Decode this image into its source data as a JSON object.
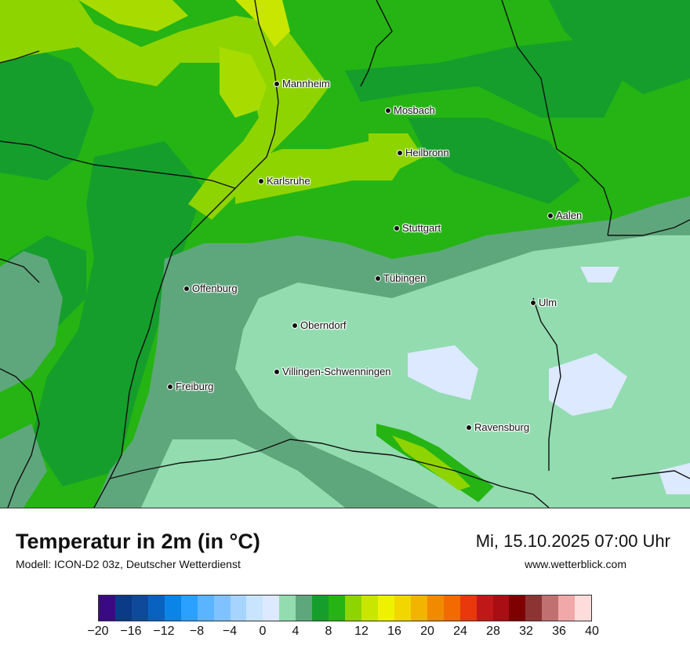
{
  "map": {
    "cities": [
      {
        "name": "Mannheim"
      },
      {
        "name": "Mosbach"
      },
      {
        "name": "Heilbronn"
      },
      {
        "name": "Karlsruhe"
      },
      {
        "name": "Stuttgart"
      },
      {
        "name": "Aalen"
      },
      {
        "name": "Tübingen"
      },
      {
        "name": "Offenburg"
      },
      {
        "name": "Ulm"
      },
      {
        "name": "Oberndorf"
      },
      {
        "name": "Villingen-Schwenningen"
      },
      {
        "name": "Freiburg"
      },
      {
        "name": "Ravensburg"
      }
    ]
  },
  "footer": {
    "title": "Temperatur in 2m (in °C)",
    "subtitle": "Modell: ICON-D2 03z, Deutscher Wetterdienst",
    "datetime": "Mi, 15.10.2025 07:00 Uhr",
    "website": "www.wetterblick.com"
  },
  "legend": {
    "colors": [
      "#3a0a84",
      "#0b3a86",
      "#0f4a9a",
      "#0a62c0",
      "#0b84e8",
      "#2aa0ff",
      "#5ab4ff",
      "#7fc2ff",
      "#a6d4ff",
      "#c9e4ff",
      "#dce9ff",
      "#92dcb0",
      "#5ea77c",
      "#159e2c",
      "#25b414",
      "#8ed400",
      "#c8e600",
      "#eef200",
      "#f2d600",
      "#f2b400",
      "#f28a00",
      "#f26a00",
      "#e8380c",
      "#c01818",
      "#a80e14",
      "#7e0000",
      "#8c3434",
      "#c07070",
      "#f0a8a8",
      "#ffdcdc"
    ],
    "ticks": [
      "−20",
      "−16",
      "−12",
      "−8",
      "−4",
      "0",
      "4",
      "8",
      "12",
      "16",
      "20",
      "24",
      "28",
      "32",
      "36",
      "40"
    ]
  }
}
